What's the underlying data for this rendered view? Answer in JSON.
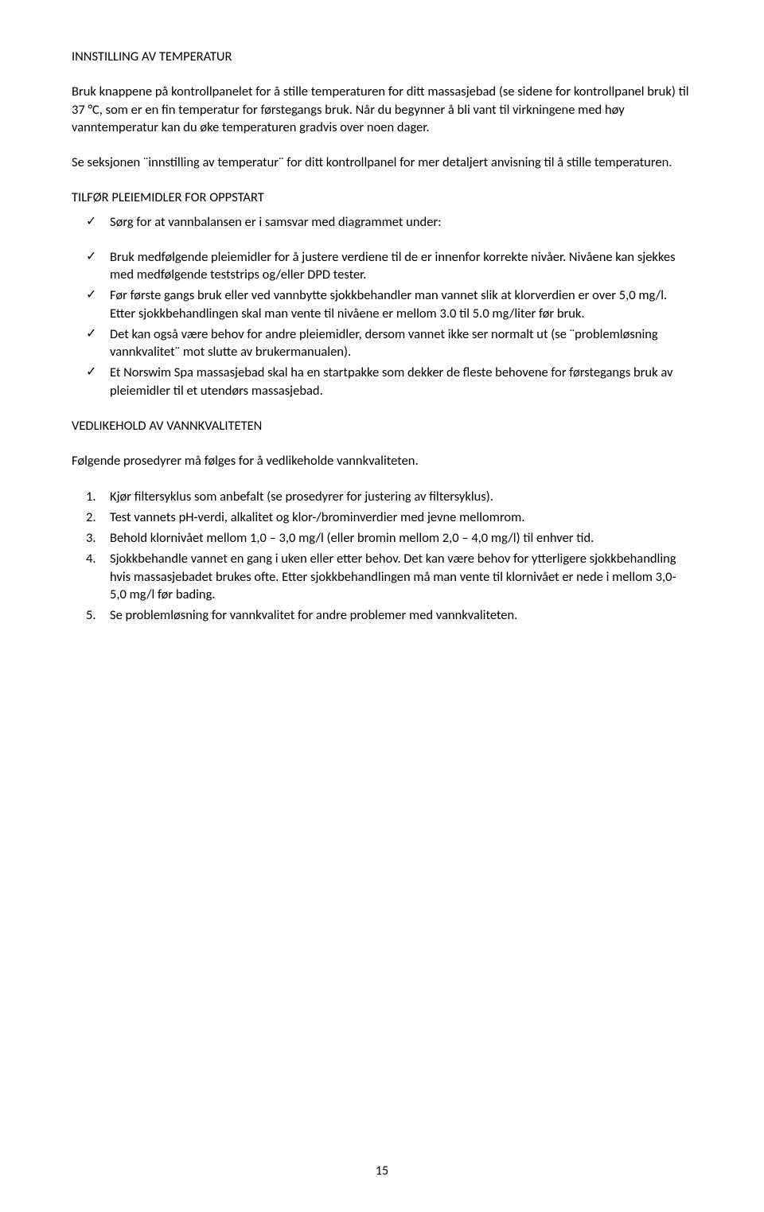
{
  "heading1": "INNSTILLING AV TEMPERATUR",
  "para1": "Bruk knappene på kontrollpanelet for å stille temperaturen for ditt massasjebad (se sidene for kontrollpanel bruk) til 37 °C, som er en fin temperatur for førstegangs bruk. Når du begynner å bli vant til virkningene med høy vanntemperatur kan du øke temperaturen gradvis over noen dager.",
  "para2": "Se seksjonen ¨innstilling av temperatur¨ for ditt kontrollpanel for mer detaljert anvisning til å stille temperaturen.",
  "heading2": "TILFØR PLEIEMIDLER FOR OPPSTART",
  "check1": "Sørg for at vannbalansen er i samsvar med diagrammet under:",
  "checks2": [
    "Bruk medfølgende pleiemidler for å justere verdiene til de er innenfor korrekte nivåer. Nivåene kan sjekkes med medfølgende teststrips og/eller DPD tester.",
    "Før første gangs bruk eller ved vannbytte sjokkbehandler man vannet slik at klorverdien er over 5,0 mg/l. Etter sjokkbehandlingen skal man vente til nivåene er mellom 3.0 til 5.0 mg/liter  før bruk.",
    "Det kan også være behov for andre pleiemidler, dersom vannet ikke ser normalt ut (se ¨problemløsning vannkvalitet¨ mot slutte av brukermanualen).",
    "Et Norswim Spa massasjebad skal ha en startpakke som dekker de fleste behovene for førstegangs bruk av pleiemidler til et utendørs massasjebad."
  ],
  "heading3": "VEDLIKEHOLD AV VANNKVALITETEN",
  "para3": "Følgende prosedyrer må følges for å vedlikeholde vannkvaliteten.",
  "nums": [
    "Kjør filtersyklus som anbefalt (se prosedyrer for justering av filtersyklus).",
    "Test vannets pH-verdi, alkalitet og klor-/brominverdier med jevne mellomrom.",
    "Behold klornivået mellom 1,0 – 3,0 mg/l (eller bromin mellom 2,0 – 4,0 mg/l) til enhver tid.",
    "Sjokkbehandle vannet en gang i uken eller etter behov. Det kan være behov for ytterligere sjokkbehandling hvis massasjebadet brukes ofte. Etter sjokkbehandlingen må man vente til klornivået er nede i mellom 3,0-5,0 mg/l før bading.",
    "Se problemløsning for vannkvalitet for andre problemer med vannkvaliteten."
  ],
  "pageNumber": "15"
}
